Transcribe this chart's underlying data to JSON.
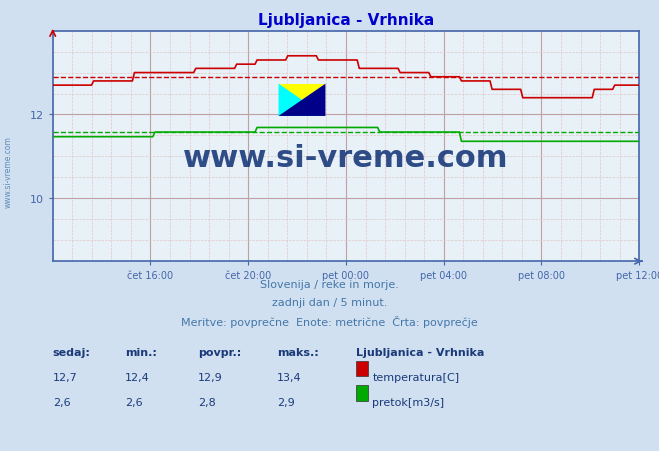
{
  "title": "Ljubljanica - Vrhnika",
  "title_color": "#0000cc",
  "bg_color": "#d0e0f0",
  "plot_bg_color": "#e8f0f8",
  "grid_color": "#c0a0a0",
  "grid_minor_color": "#e0c8c8",
  "x_labels": [
    "čet 16:00",
    "čet 20:00",
    "pet 00:00",
    "pet 04:00",
    "pet 08:00",
    "pet 12:00"
  ],
  "y_ticks": [
    10,
    12
  ],
  "y_min": 8.5,
  "y_max": 14.0,
  "temp_color": "#cc0000",
  "temp_avg": 12.9,
  "temp_min": 12.4,
  "temp_max": 13.4,
  "temp_sedaj": 12.7,
  "flow_color": "#00aa00",
  "flow_avg": 2.8,
  "flow_min": 2.6,
  "flow_max": 2.9,
  "flow_sedaj": 2.6,
  "flow_scale_min": 0,
  "flow_scale_max": 5.0,
  "n_points": 288,
  "watermark_text": "www.si-vreme.com",
  "watermark_color": "#1a3a7a",
  "footer_line1": "Slovenija / reke in morje.",
  "footer_line2": "zadnji dan / 5 minut.",
  "footer_line3": "Meritve: povprečne  Enote: metrične  Črta: povprečje",
  "footer_color": "#4477aa",
  "legend_title": "Ljubljanica - Vrhnika",
  "legend_color": "#1a3a7a",
  "label_color": "#4477aa",
  "axis_color": "#4466aa"
}
